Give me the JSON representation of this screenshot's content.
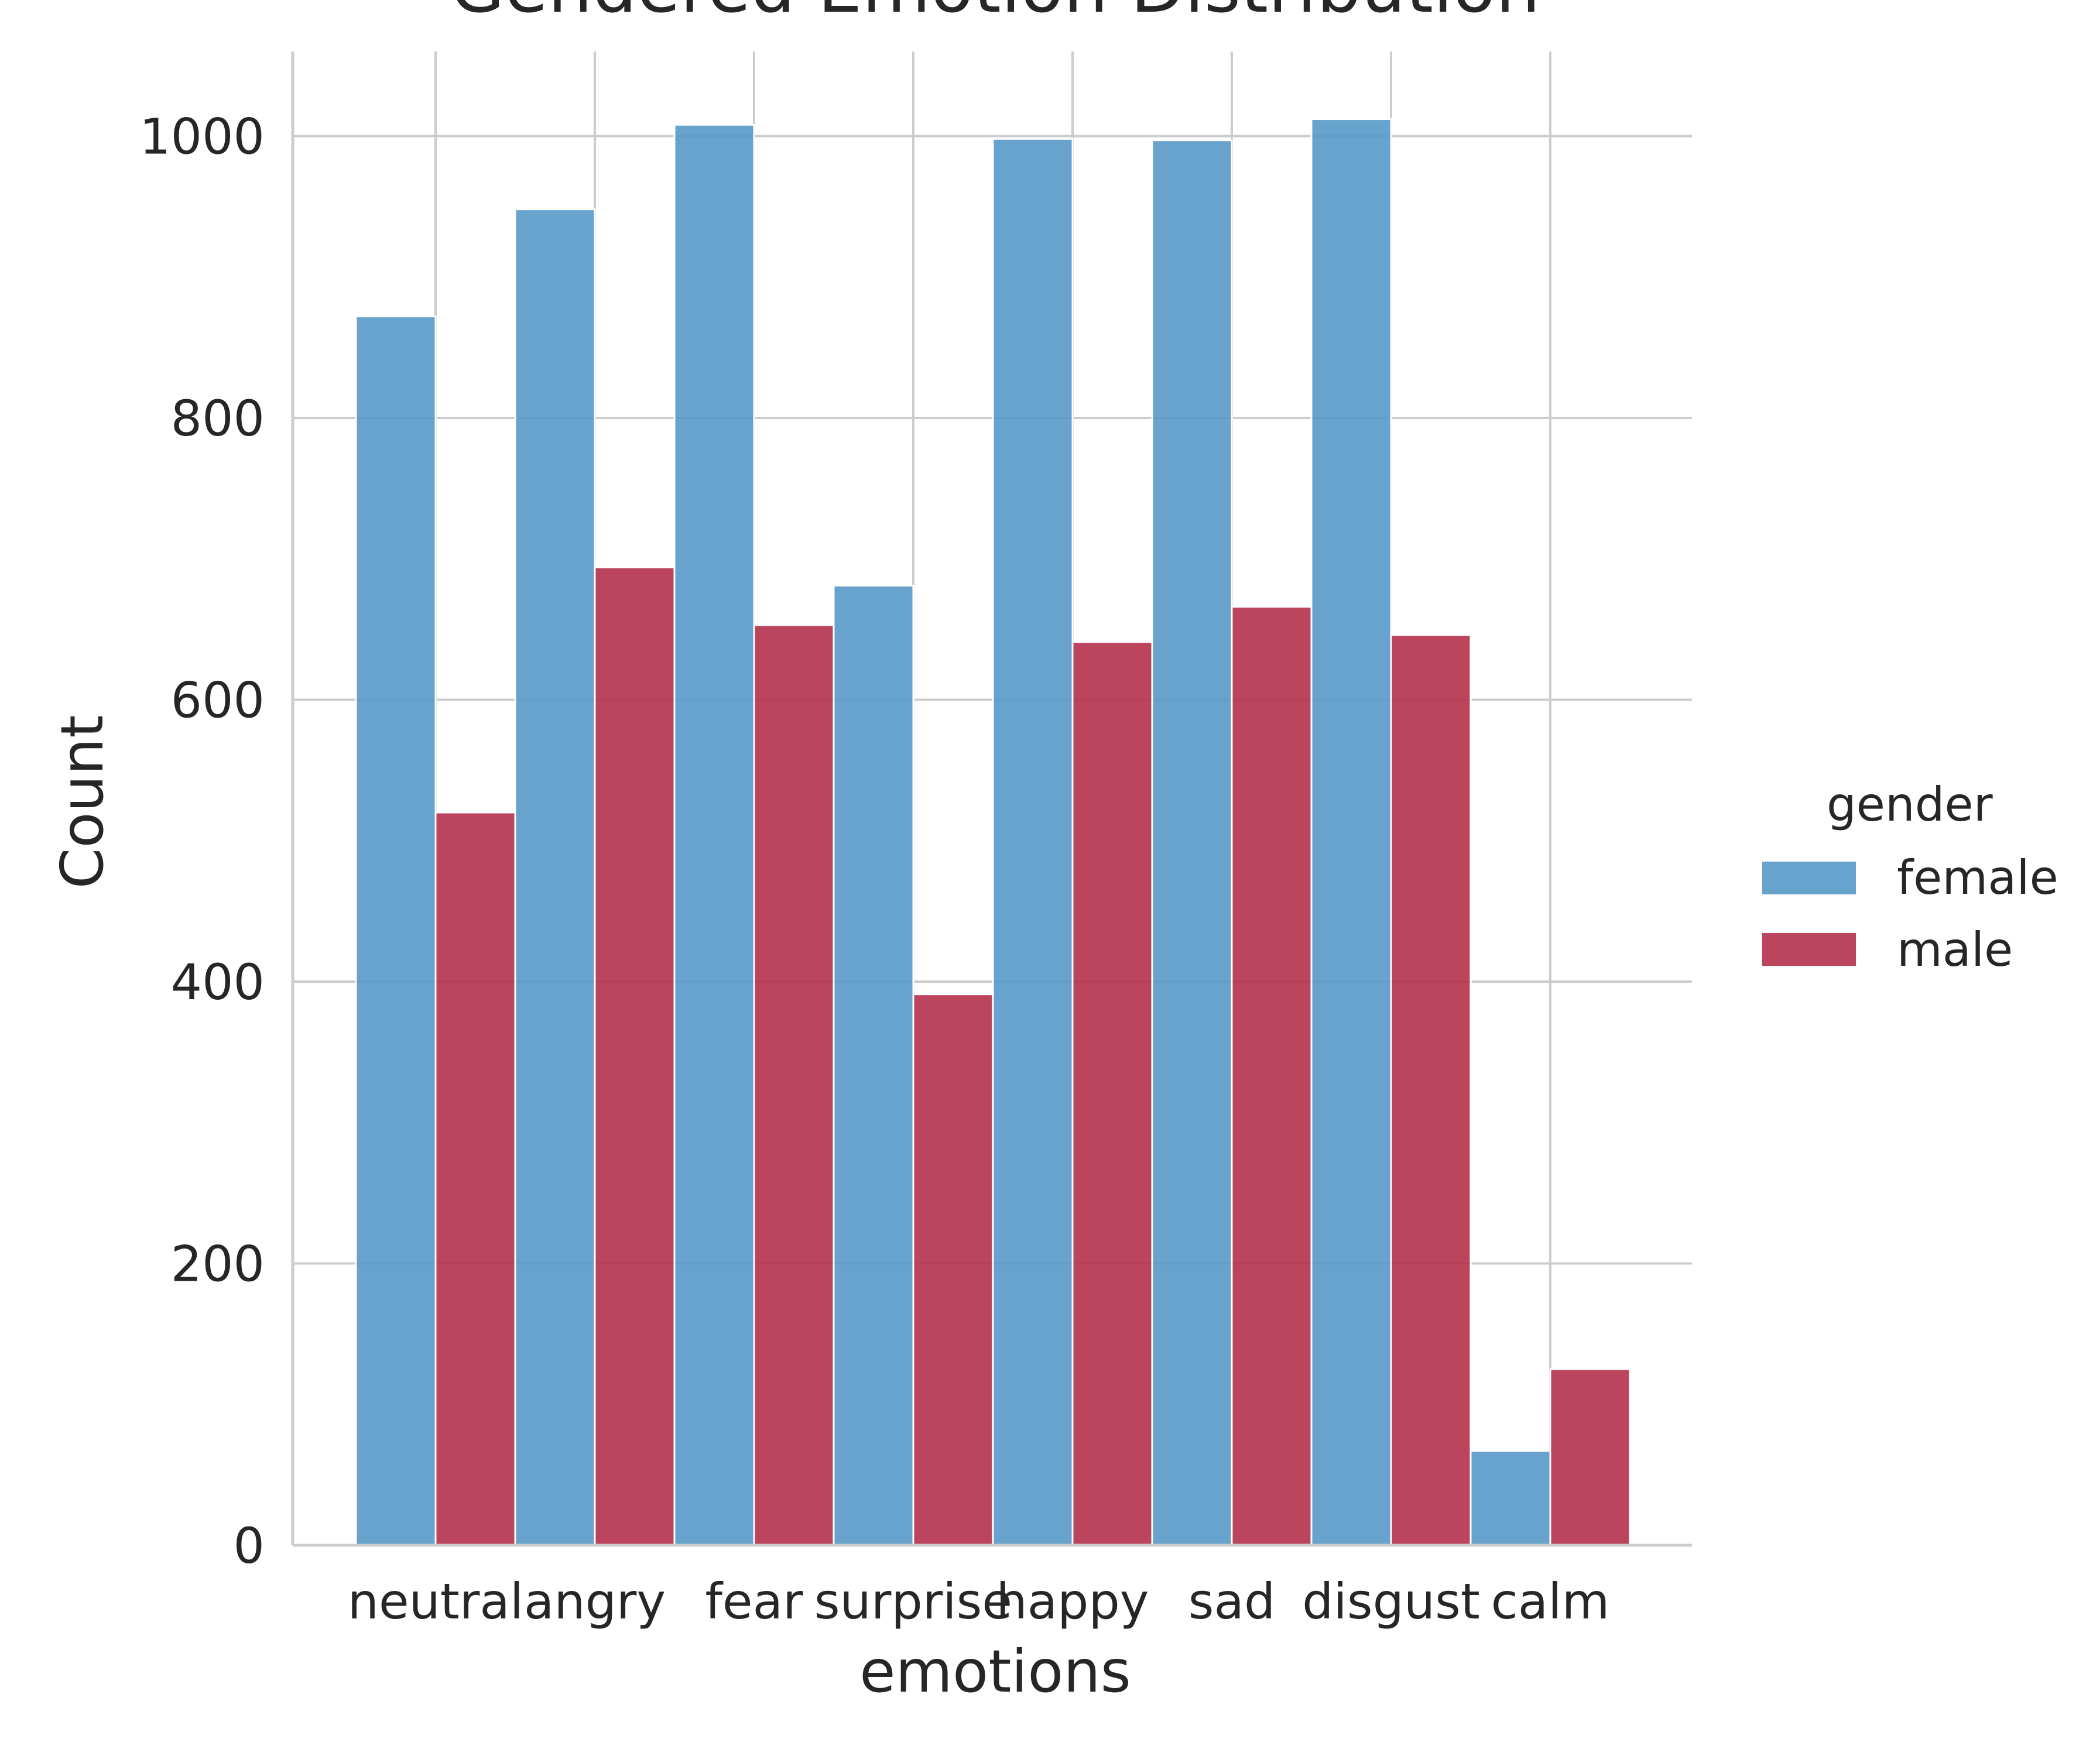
{
  "chart_data": {
    "type": "bar",
    "title": "Gendered Emotion Distribution",
    "xlabel": "emotions",
    "ylabel": "Count",
    "ylim": [
      0,
      1060
    ],
    "yticks": [
      0,
      200,
      400,
      600,
      800,
      1000
    ],
    "grid": true,
    "legend_position": "right",
    "legend_title": "gender",
    "categories": [
      "neutral",
      "angry",
      "fear",
      "surprise",
      "happy",
      "sad",
      "disgust",
      "calm"
    ],
    "series": [
      {
        "name": "female",
        "color": "#5799c7",
        "values": [
          872,
          948,
          1008,
          681,
          998,
          997,
          1012,
          67
        ]
      },
      {
        "name": "male",
        "color": "#b5314d",
        "values": [
          520,
          694,
          653,
          391,
          641,
          666,
          646,
          125
        ]
      }
    ]
  }
}
